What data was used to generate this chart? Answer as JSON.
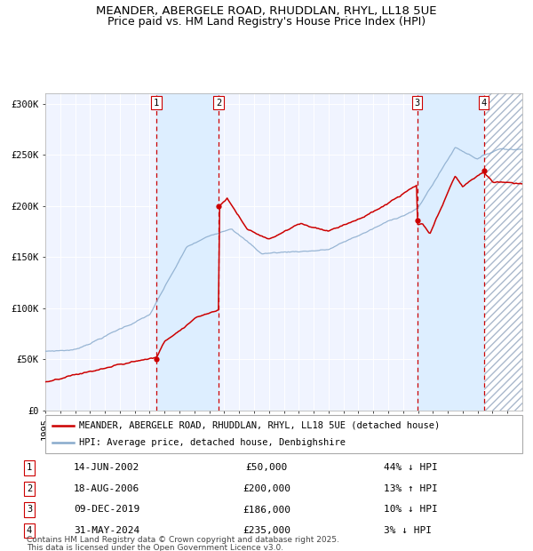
{
  "title1": "MEANDER, ABERGELE ROAD, RHUDDLAN, RHYL, LL18 5UE",
  "title2": "Price paid vs. HM Land Registry's House Price Index (HPI)",
  "ylim": [
    0,
    310000
  ],
  "yticks": [
    0,
    50000,
    100000,
    150000,
    200000,
    250000,
    300000
  ],
  "ytick_labels": [
    "£0",
    "£50K",
    "£100K",
    "£150K",
    "£200K",
    "£250K",
    "£300K"
  ],
  "xstart_year": 1995,
  "xend_year": 2027,
  "transactions": [
    {
      "num": 1,
      "date": "14-JUN-2002",
      "year": 2002.45,
      "price": 50000,
      "pct": "44%",
      "dir": "↓"
    },
    {
      "num": 2,
      "date": "18-AUG-2006",
      "year": 2006.63,
      "price": 200000,
      "pct": "13%",
      "dir": "↑"
    },
    {
      "num": 3,
      "date": "09-DEC-2019",
      "year": 2019.94,
      "price": 186000,
      "pct": "10%",
      "dir": "↓"
    },
    {
      "num": 4,
      "date": "31-MAY-2024",
      "year": 2024.42,
      "price": 235000,
      "pct": "3%",
      "dir": "↓"
    }
  ],
  "legend_line1": "MEANDER, ABERGELE ROAD, RHUDDLAN, RHYL, LL18 5UE (detached house)",
  "legend_line2": "HPI: Average price, detached house, Denbighshire",
  "price_line_color": "#cc0000",
  "hpi_line_color": "#88aacc",
  "shade_color": "#ddeeff",
  "dashed_color": "#cc0000",
  "marker_color": "#cc0000",
  "footer1": "Contains HM Land Registry data © Crown copyright and database right 2025.",
  "footer2": "This data is licensed under the Open Government Licence v3.0.",
  "title_fontsize": 9.5,
  "tick_fontsize": 7.5,
  "legend_fontsize": 7.5,
  "table_fontsize": 8.0,
  "footer_fontsize": 6.5
}
